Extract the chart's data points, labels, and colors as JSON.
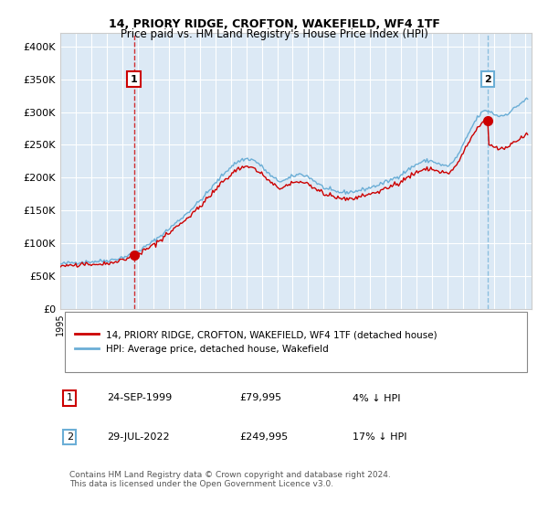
{
  "title": "14, PRIORY RIDGE, CROFTON, WAKEFIELD, WF4 1TF",
  "subtitle": "Price paid vs. HM Land Registry's House Price Index (HPI)",
  "footer": "Contains HM Land Registry data © Crown copyright and database right 2024.\nThis data is licensed under the Open Government Licence v3.0.",
  "legend_line1": "14, PRIORY RIDGE, CROFTON, WAKEFIELD, WF4 1TF (detached house)",
  "legend_line2": "HPI: Average price, detached house, Wakefield",
  "sale1_date": "24-SEP-1999",
  "sale1_price": 79995,
  "sale1_pct": "4% ↓ HPI",
  "sale2_date": "29-JUL-2022",
  "sale2_price": 249995,
  "sale2_pct": "17% ↓ HPI",
  "hpi_color": "#6baed6",
  "price_color": "#cc0000",
  "vline1_color": "#cc0000",
  "vline2_color": "#6baed6",
  "bg_color": "#dce9f5",
  "grid_color": "#ffffff",
  "ylim": [
    0,
    420000
  ],
  "xlabel_rotation": 90
}
